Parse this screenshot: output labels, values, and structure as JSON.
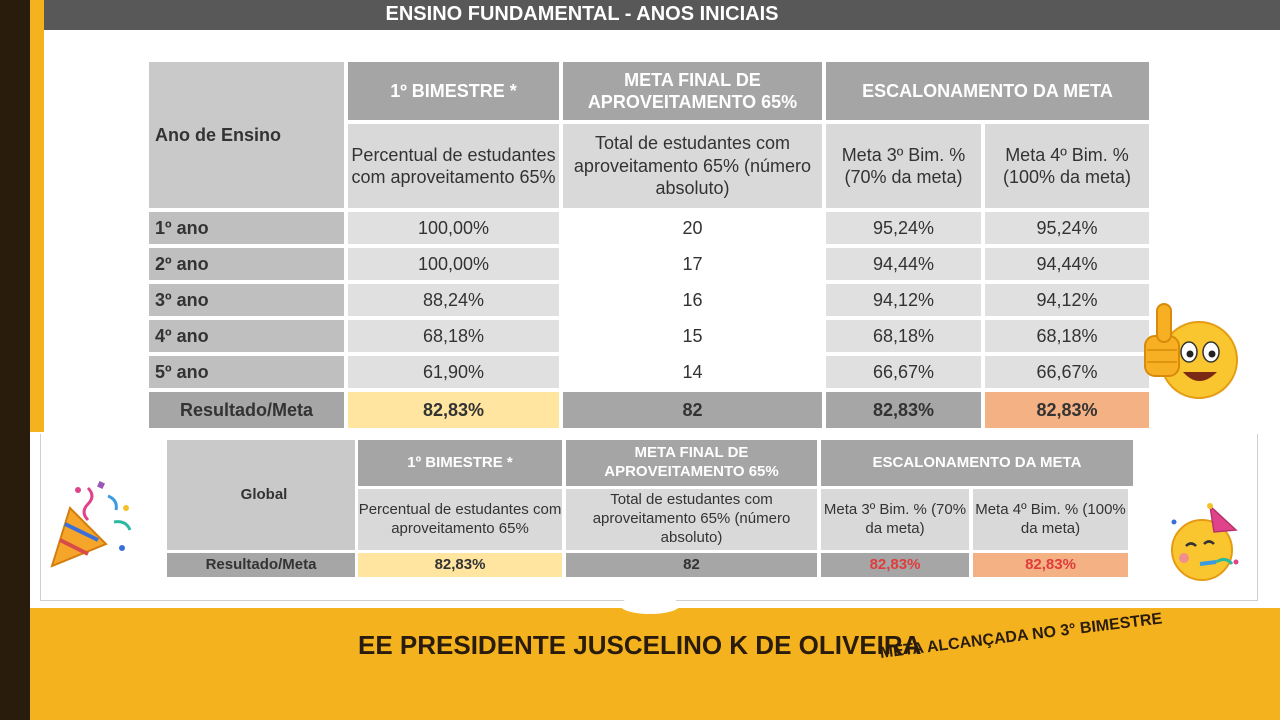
{
  "header": {
    "title": "ENSINO FUNDAMENTAL - ANOS INICIAIS"
  },
  "table1": {
    "row_header": "Ano de Ensino",
    "col_groups": [
      "1º BIMESTRE *",
      "META FINAL DE APROVEITAMENTO 65%",
      "ESCALONAMENTO DA META"
    ],
    "sub_headers": [
      "Percentual de estudantes com aproveitamento 65%",
      "Total de estudantes com aproveitamento 65% (número absoluto)",
      "Meta 3º Bim. % (70% da meta)",
      "Meta 4º Bim. % (100% da meta)"
    ],
    "rows": [
      {
        "label": "1º ano",
        "values": [
          "100,00%",
          "20",
          "95,24%",
          "95,24%"
        ]
      },
      {
        "label": "2º ano",
        "values": [
          "100,00%",
          "17",
          "94,44%",
          "94,44%"
        ]
      },
      {
        "label": "3º ano",
        "values": [
          "88,24%",
          "16",
          "94,12%",
          "94,12%"
        ]
      },
      {
        "label": "4º ano",
        "values": [
          "68,18%",
          "15",
          "68,18%",
          "68,18%"
        ]
      },
      {
        "label": "5º ano",
        "values": [
          "61,90%",
          "14",
          "66,67%",
          "66,67%"
        ]
      }
    ],
    "result": {
      "label": "Resultado/Meta",
      "values": [
        "82,83%",
        "82",
        "82,83%",
        "82,83%"
      ]
    }
  },
  "table2": {
    "row_header": "Global",
    "col_groups": [
      "1º BIMESTRE *",
      "META FINAL DE APROVEITAMENTO 65%",
      "ESCALONAMENTO DA META"
    ],
    "sub_headers": [
      "Percentual de estudantes com aproveitamento 65%",
      "Total de estudantes com aproveitamento 65% (número absoluto)",
      "Meta 3º Bim. % (70% da meta)",
      "Meta 4º Bim. % (100% da meta)"
    ],
    "result": {
      "label": "Resultado/Meta",
      "values": [
        "82,83%",
        "82",
        "82,83%",
        "82,83%"
      ]
    }
  },
  "footer": {
    "school": "EE PRESIDENTE JUSCELINO K DE OLIVEIRA",
    "note": "META ALCANÇADA NO 3° BIMESTRE"
  },
  "icons": [
    "thumbs-up-emoji-icon",
    "party-popper-icon",
    "party-face-emoji-icon"
  ],
  "colors": {
    "gold": "#f3b21e",
    "dark": "#2a1c0c",
    "header_gray": "#a5a5a5",
    "highlight_yellow": "#ffe5a0",
    "highlight_orange": "#f4b183",
    "alert_red": "#e03c3c"
  }
}
